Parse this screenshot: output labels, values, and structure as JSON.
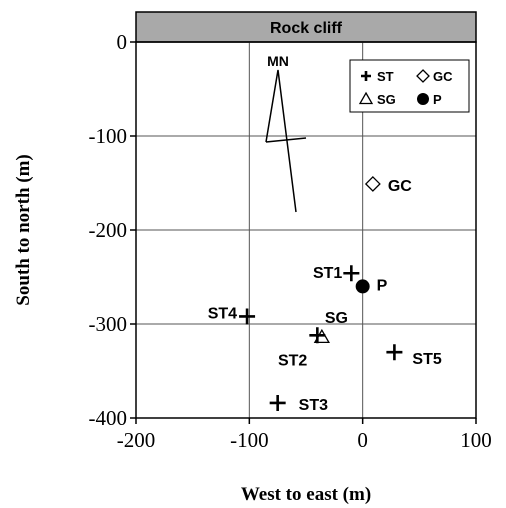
{
  "chart_data": {
    "type": "scatter",
    "title": "Rock cliff",
    "xlabel": "West to east (m)",
    "ylabel": "South to north (m)",
    "xlim": [
      -200,
      100
    ],
    "ylim": [
      -400,
      0
    ],
    "x_ticks": [
      -200,
      -100,
      0,
      100
    ],
    "y_ticks": [
      0,
      -100,
      -200,
      -300,
      -400
    ],
    "x_tick_labels": [
      "-200",
      "-100",
      "0",
      "100"
    ],
    "y_tick_labels": [
      "0",
      "-100",
      "-200",
      "-300",
      "-400"
    ],
    "grid": true,
    "legend_position": "top-right",
    "legend": [
      {
        "marker": "plus",
        "label": "ST"
      },
      {
        "marker": "diamond",
        "label": "GC"
      },
      {
        "marker": "triangle",
        "label": "SG"
      },
      {
        "marker": "circle",
        "label": "P"
      }
    ],
    "points": [
      {
        "label": "ST1",
        "marker": "plus",
        "x": -10,
        "y": -246
      },
      {
        "label": "ST2",
        "marker": "plus",
        "x": -40,
        "y": -312
      },
      {
        "label": "ST3",
        "marker": "plus",
        "x": -75,
        "y": -384
      },
      {
        "label": "ST4",
        "marker": "plus",
        "x": -102,
        "y": -292
      },
      {
        "label": "ST5",
        "marker": "plus",
        "x": 28,
        "y": -330
      },
      {
        "label": "GC",
        "marker": "diamond",
        "x": 9,
        "y": -151
      },
      {
        "label": "SG",
        "marker": "triangle",
        "x": -36,
        "y": -314
      },
      {
        "label": "P",
        "marker": "circle",
        "x": 0,
        "y": -260
      }
    ],
    "north_arrow": {
      "label": "MN"
    }
  }
}
